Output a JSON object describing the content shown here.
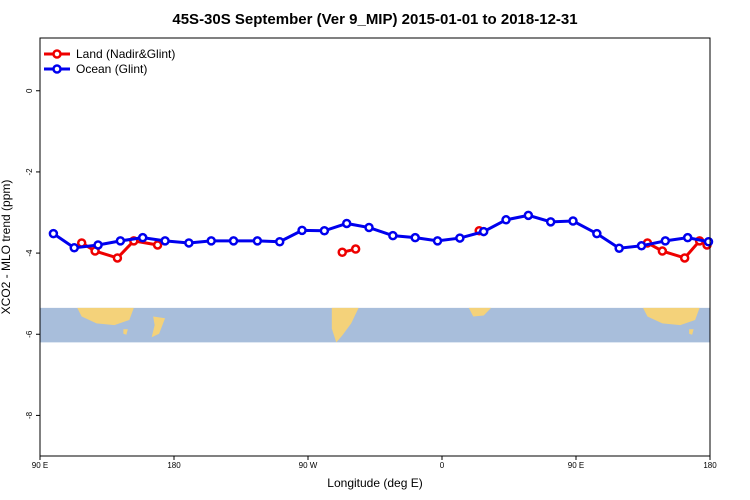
{
  "chart_data": {
    "type": "line",
    "title": "45S-30S September (Ver 9_MIP)   2015-01-01 to 2018-12-31",
    "xlabel": "Longitude (deg E)",
    "ylabel": "XCO2 - MLO trend (ppm)",
    "xlim": [
      90,
      540
    ],
    "ylim": [
      -9.0,
      1.3
    ],
    "x_ticks": [
      {
        "value": 90,
        "label": "90 E"
      },
      {
        "value": 180,
        "label": "180"
      },
      {
        "value": 270,
        "label": "90 W"
      },
      {
        "value": 360,
        "label": "0"
      },
      {
        "value": 450,
        "label": "90 E"
      },
      {
        "value": 540,
        "label": "180"
      }
    ],
    "y_ticks": [
      {
        "value": 0,
        "label": "0"
      },
      {
        "value": -2,
        "label": "-2"
      },
      {
        "value": -4,
        "label": "-4"
      },
      {
        "value": -6,
        "label": "-6"
      },
      {
        "value": -8,
        "label": "-8"
      }
    ],
    "legend": {
      "position": "top-left"
    },
    "series": [
      {
        "name": "Land (Nadir&Glint)",
        "color": "#ee0000",
        "segments": [
          {
            "x": [
              118,
              127,
              142,
              153,
              169
            ],
            "y": [
              -3.75,
              -3.95,
              -4.12,
              -3.7,
              -3.8
            ]
          },
          {
            "x": [
              293,
              302
            ],
            "y": [
              -3.98,
              -3.9
            ]
          },
          {
            "x": [
              385
            ],
            "y": [
              -3.45
            ]
          },
          {
            "x": [
              498,
              508,
              523,
              533,
              538
            ],
            "y": [
              -3.75,
              -3.95,
              -4.12,
              -3.7,
              -3.8
            ]
          }
        ]
      },
      {
        "name": "Ocean (Glint)",
        "color": "#0000ee",
        "segments": [
          {
            "x": [
              99,
              113,
              129,
              144,
              159,
              174,
              190,
              205,
              220,
              236,
              251,
              266,
              281,
              296,
              311,
              327,
              342,
              357,
              372,
              388,
              403,
              418,
              433,
              448,
              464,
              479,
              494,
              510,
              525,
              539
            ],
            "y": [
              -3.52,
              -3.87,
              -3.8,
              -3.7,
              -3.62,
              -3.7,
              -3.75,
              -3.7,
              -3.7,
              -3.7,
              -3.72,
              -3.44,
              -3.45,
              -3.27,
              -3.37,
              -3.57,
              -3.62,
              -3.7,
              -3.63,
              -3.47,
              -3.18,
              -3.07,
              -3.23,
              -3.21,
              -3.52,
              -3.88,
              -3.82,
              -3.7,
              -3.62,
              -3.72
            ]
          }
        ]
      }
    ],
    "map_strip": {
      "ocean_color": "#a8bedb",
      "land_color": "#f4d27a",
      "y_range": [
        -5.35,
        -6.2
      ]
    }
  }
}
